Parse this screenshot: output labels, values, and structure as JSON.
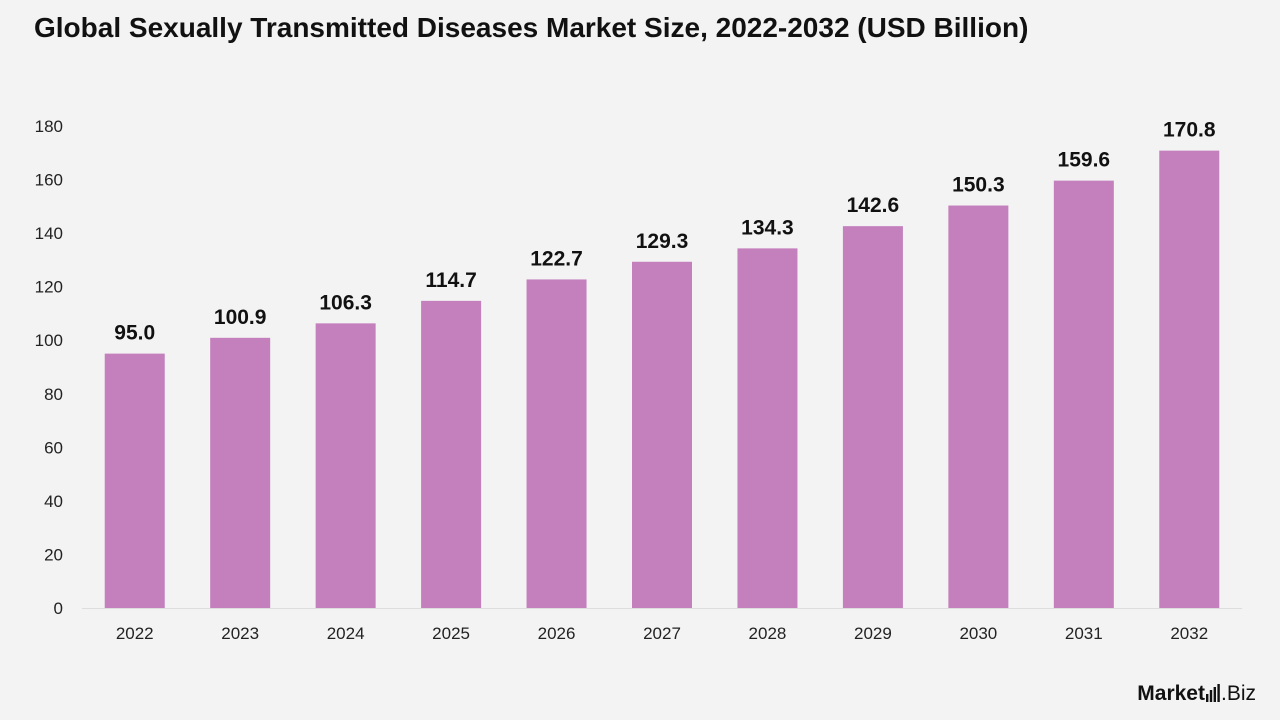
{
  "title": "Global Sexually Transmitted Diseases Market Size, 2022-2032 (USD Billion)",
  "logo": {
    "word": "Market",
    "suffix": ".Biz",
    "icon": "bar-chart-icon"
  },
  "colors": {
    "bar": "#c47fbd",
    "background": "#f3f3f3",
    "axis": "#dddddd"
  },
  "chart_data": {
    "type": "bar",
    "title": "Global Sexually Transmitted Diseases Market Size, 2022-2032 (USD Billion)",
    "categories": [
      "2022",
      "2023",
      "2024",
      "2025",
      "2026",
      "2027",
      "2028",
      "2029",
      "2030",
      "2031",
      "2032"
    ],
    "values": [
      95.0,
      100.9,
      106.3,
      114.7,
      122.7,
      129.3,
      134.3,
      142.6,
      150.3,
      159.6,
      170.8
    ],
    "data_labels": [
      "95.0",
      "100.9",
      "106.3",
      "114.7",
      "122.7",
      "129.3",
      "134.3",
      "142.6",
      "150.3",
      "159.6",
      "170.8"
    ],
    "yticks": [
      "0",
      "20",
      "40",
      "60",
      "80",
      "100",
      "120",
      "140",
      "160",
      "180"
    ],
    "ylim": [
      0,
      180
    ],
    "xlabel": "",
    "ylabel": "",
    "grid": false,
    "legend": "none"
  }
}
